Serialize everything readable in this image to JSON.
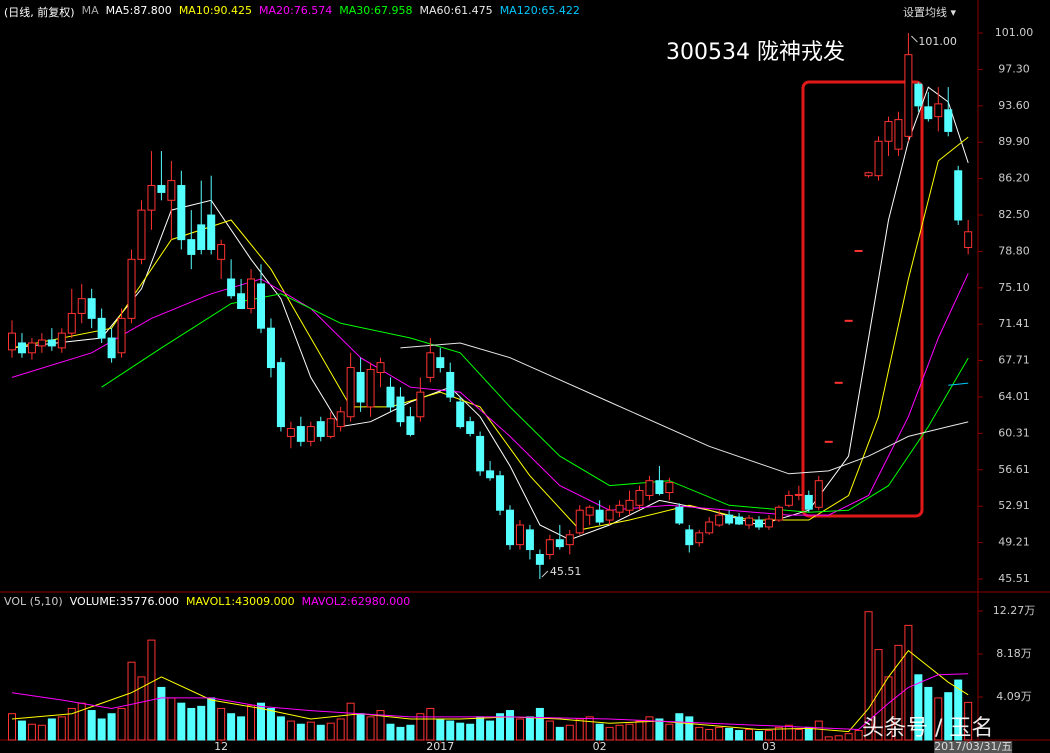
{
  "ui": {
    "period": "(日线, 前复权)",
    "button": "设置均线",
    "watermark": "头条号 / 玉名"
  },
  "chart_data": [
    {
      "type": "candlestick",
      "title": "300534  陇神戎发",
      "legend_title": "MA",
      "up_color": "#ff3232",
      "down_color": "#54ffff",
      "max_label": "101.00",
      "min_label": "45.51",
      "ylim": [
        44.39,
        103.85
      ],
      "yticks": [
        {
          "value": 101,
          "label": "101.00"
        },
        {
          "value": 97.3,
          "label": "97.30"
        },
        {
          "value": 93.6,
          "label": "93.60"
        },
        {
          "value": 89.9,
          "label": "89.90"
        },
        {
          "value": 86.2,
          "label": "86.20"
        },
        {
          "value": 82.5,
          "label": "82.50"
        },
        {
          "value": 78.8,
          "label": "78.80"
        },
        {
          "value": 75.1,
          "label": "75.10"
        },
        71.41,
        67.71,
        64.01,
        60.31,
        56.61,
        52.91,
        49.21,
        45.51
      ],
      "categories": [
        null,
        null,
        null,
        null,
        null,
        null,
        null,
        null,
        null,
        null,
        null,
        null,
        null,
        null,
        null,
        null,
        null,
        null,
        null,
        null,
        null,
        "12",
        null,
        null,
        null,
        null,
        null,
        null,
        null,
        null,
        null,
        null,
        null,
        null,
        null,
        null,
        null,
        null,
        null,
        null,
        null,
        null,
        null,
        "2017",
        null,
        null,
        null,
        null,
        null,
        null,
        null,
        null,
        null,
        null,
        null,
        null,
        null,
        null,
        null,
        "02",
        null,
        null,
        null,
        null,
        null,
        null,
        null,
        null,
        null,
        null,
        null,
        null,
        null,
        null,
        null,
        null,
        "03",
        null,
        null,
        null,
        null,
        null,
        null,
        null,
        null,
        null,
        null,
        null,
        null,
        null,
        null,
        null,
        null,
        null,
        null,
        null,
        "2017/03/31/五"
      ],
      "ohlc": [
        [
          68.8,
          71.8,
          68,
          70.5
        ],
        [
          69.5,
          70.5,
          68,
          68.5
        ],
        [
          68.5,
          70,
          67.8,
          69.5
        ],
        [
          69.2,
          70.5,
          68.5,
          69.8
        ],
        [
          69.8,
          71,
          68.7,
          69.2
        ],
        [
          69,
          71,
          68.5,
          70.5
        ],
        [
          70.5,
          75,
          70,
          72.5
        ],
        [
          72.5,
          75.5,
          71.5,
          74
        ],
        [
          74,
          75,
          71,
          72
        ],
        [
          72,
          73,
          69.5,
          70
        ],
        [
          70,
          71,
          67.5,
          68
        ],
        [
          68.5,
          73,
          68,
          72
        ],
        [
          72,
          79,
          71.5,
          78
        ],
        [
          78,
          84,
          77.5,
          83
        ],
        [
          83,
          89,
          81,
          85.5
        ],
        [
          85.5,
          89,
          84,
          84.8
        ],
        [
          84,
          88,
          80,
          86
        ],
        [
          85.5,
          87,
          79,
          80
        ],
        [
          80,
          83,
          77,
          78.5
        ],
        [
          81.5,
          86,
          78.5,
          79
        ],
        [
          82.5,
          86.5,
          78.5,
          79
        ],
        [
          78,
          80,
          76,
          79.5
        ],
        [
          76,
          78,
          74,
          74.3
        ],
        [
          74.5,
          76,
          73,
          73
        ],
        [
          73,
          77,
          72.5,
          76
        ],
        [
          75.5,
          77.5,
          70.5,
          71
        ],
        [
          71,
          72,
          66,
          67
        ],
        [
          67.5,
          68,
          60.5,
          61
        ],
        [
          60,
          61.5,
          58.8,
          60.8
        ],
        [
          61,
          62,
          59,
          59.5
        ],
        [
          59.5,
          61.5,
          59,
          61
        ],
        [
          61.5,
          62,
          59.5,
          60
        ],
        [
          60,
          62.5,
          59.8,
          61.8
        ],
        [
          61,
          63,
          60.5,
          62.5
        ],
        [
          62,
          68.5,
          61.5,
          67
        ],
        [
          66.5,
          68,
          62.5,
          63.5
        ],
        [
          63,
          67.5,
          62,
          66.8
        ],
        [
          66.5,
          68,
          65,
          67.5
        ],
        [
          65,
          66,
          62.5,
          63
        ],
        [
          64,
          65,
          61,
          61.5
        ],
        [
          62,
          63,
          60,
          60.2
        ],
        [
          62,
          66,
          61.5,
          64.5
        ],
        [
          66,
          70,
          65.5,
          68.5
        ],
        [
          68,
          69,
          66.5,
          67
        ],
        [
          66.5,
          67.5,
          63.5,
          64
        ],
        [
          63.5,
          64,
          60.8,
          61
        ],
        [
          61.5,
          62,
          60,
          60.3
        ],
        [
          60,
          60.5,
          56,
          56.5
        ],
        [
          56.5,
          57.5,
          55.5,
          55.8
        ],
        [
          56,
          56.5,
          52,
          52.5
        ],
        [
          52.5,
          53,
          48.5,
          49
        ],
        [
          49,
          51.5,
          48.5,
          51
        ],
        [
          50.5,
          51,
          47.5,
          48.5
        ],
        [
          48,
          48.5,
          45.51,
          47
        ],
        [
          48,
          50,
          47.5,
          49.5
        ],
        [
          49.5,
          51,
          48.5,
          48.8
        ],
        [
          49,
          50.5,
          48,
          50
        ],
        [
          50.2,
          53,
          50,
          52.5
        ],
        [
          52,
          53,
          51,
          52.8
        ],
        [
          52.5,
          53.5,
          51,
          51.3
        ],
        [
          51.5,
          53,
          51,
          52.5
        ],
        [
          52.3,
          53.5,
          51.8,
          53
        ],
        [
          52.5,
          54.5,
          52,
          53.5
        ],
        [
          53,
          55,
          52.5,
          54.5
        ],
        [
          54,
          56,
          53.5,
          55.5
        ],
        [
          55.5,
          57,
          54,
          54.2
        ],
        [
          54.3,
          55.8,
          53.5,
          55.3
        ],
        [
          52.8,
          53.2,
          51,
          51.2
        ],
        [
          50.5,
          51,
          48.2,
          49
        ],
        [
          49.2,
          50.5,
          48.8,
          50.2
        ],
        [
          50.2,
          51.8,
          50,
          51.3
        ],
        [
          51,
          52.5,
          50.8,
          52
        ],
        [
          52,
          52.5,
          51,
          51.2
        ],
        [
          51.8,
          52.2,
          51,
          51.1
        ],
        [
          51,
          52,
          50.6,
          51.7
        ],
        [
          51.5,
          51.9,
          50.5,
          50.8
        ],
        [
          50.8,
          52,
          50.5,
          51.6
        ],
        [
          51.5,
          53,
          51.3,
          52.8
        ],
        [
          53,
          54.5,
          52.8,
          54
        ],
        [
          54,
          55,
          53.5,
          54.1
        ],
        [
          54,
          54.5,
          52.3,
          52.6
        ],
        [
          52.8,
          56,
          52.5,
          55.5
        ],
        [
          59.5,
          59.5,
          59.5,
          59.5
        ],
        [
          65.5,
          65.5,
          65.5,
          65.5
        ],
        [
          71.8,
          71.8,
          71.8,
          71.8
        ],
        [
          78.9,
          78.9,
          78.9,
          78.9
        ],
        [
          86.5,
          86.9,
          86.3,
          86.8
        ],
        [
          86.5,
          90.5,
          86,
          90
        ],
        [
          90,
          92.5,
          88.5,
          92
        ],
        [
          89.2,
          93,
          88.5,
          92.2
        ],
        [
          90.5,
          101,
          90,
          98.8
        ],
        [
          95.8,
          96,
          93,
          93.6
        ],
        [
          93.5,
          95,
          92,
          92.3
        ],
        [
          92.5,
          95.5,
          91,
          93.8
        ],
        [
          93.2,
          95.5,
          90.5,
          91
        ],
        [
          87,
          87.5,
          81.5,
          82
        ],
        [
          79.2,
          82,
          78.5,
          80.8
        ]
      ],
      "series": [
        {
          "name": "MA5:87.800",
          "color": "#ffffff",
          "x": [
            0,
            9,
            13,
            16,
            20,
            24,
            27,
            30,
            33,
            36,
            40,
            44,
            47,
            50,
            53,
            56,
            60,
            65,
            70,
            75,
            80,
            84,
            86,
            88,
            90,
            92,
            94,
            96
          ],
          "values": [
            69,
            70,
            75,
            83,
            84,
            78,
            74,
            66,
            61,
            61.5,
            63.5,
            65,
            62,
            57,
            51,
            49.5,
            51,
            53.5,
            52.5,
            51,
            52.5,
            58,
            70,
            82,
            90,
            95.5,
            94,
            87.8
          ]
        },
        {
          "name": "MA10:90.425",
          "color": "#ffff00",
          "x": [
            0,
            10,
            16,
            22,
            26,
            30,
            34,
            38,
            43,
            47,
            52,
            57,
            62,
            68,
            74,
            80,
            84,
            87,
            90,
            93,
            96
          ],
          "values": [
            69,
            71,
            80,
            82,
            77,
            70,
            63,
            63,
            64.5,
            63,
            56,
            50.5,
            51.5,
            53,
            51.5,
            51.5,
            54,
            62,
            76,
            88,
            90.425
          ]
        },
        {
          "name": "MA20:76.574",
          "color": "#ff00ff",
          "x": [
            0,
            8,
            14,
            20,
            25,
            30,
            35,
            40,
            45,
            50,
            55,
            60,
            66,
            72,
            78,
            82,
            86,
            90,
            93,
            96
          ],
          "values": [
            66,
            68.5,
            72,
            74.5,
            76,
            73,
            68,
            65,
            64.5,
            60,
            55,
            52.5,
            53,
            52.5,
            52,
            52,
            54,
            62,
            70,
            76.574
          ]
        },
        {
          "name": "MA30:67.958",
          "color": "#00ff00",
          "x": [
            9,
            15,
            22,
            27,
            33,
            40,
            45,
            50,
            55,
            60,
            66,
            72,
            80,
            84,
            88,
            92,
            96
          ],
          "values": [
            65,
            69,
            73.5,
            74.5,
            71.5,
            70,
            68.5,
            63,
            58,
            55,
            55.5,
            53,
            52.3,
            52.5,
            55,
            61,
            67.958
          ]
        },
        {
          "name": "MA60:61.475",
          "color": "#e8e8e8",
          "x": [
            39,
            45,
            50,
            60,
            70,
            78,
            82,
            86,
            90,
            94,
            96
          ],
          "values": [
            69,
            69.5,
            68,
            63.5,
            59,
            56.2,
            56.5,
            58,
            60,
            61,
            61.475
          ]
        },
        {
          "name": "MA120:65.422",
          "color": "#00c8ff",
          "x": [
            94,
            96
          ],
          "values": [
            65.2,
            65.422
          ]
        }
      ]
    },
    {
      "type": "bar",
      "title": "VOL (5,10)",
      "name": "VOLUME:35776.000",
      "ylim": [
        0,
        139800
      ],
      "yticks": [
        {
          "value": 122700,
          "label": "12.27万"
        },
        {
          "value": 81800,
          "label": "8.18万"
        },
        {
          "value": 40900,
          "label": "4.09万"
        }
      ],
      "values": [
        25000,
        18000,
        15000,
        14000,
        20000,
        22000,
        30000,
        35000,
        28000,
        20000,
        25000,
        30000,
        74000,
        60000,
        95000,
        50000,
        40000,
        35000,
        30000,
        32000,
        40000,
        30000,
        25000,
        22000,
        33000,
        35000,
        30000,
        22000,
        18000,
        15000,
        17000,
        14000,
        16000,
        20000,
        35000,
        25000,
        22000,
        28000,
        15000,
        12000,
        14000,
        25000,
        30000,
        20000,
        18000,
        16000,
        15000,
        22000,
        18000,
        25000,
        28000,
        20000,
        22000,
        30000,
        18000,
        12000,
        14000,
        20000,
        22000,
        15000,
        12000,
        14000,
        15000,
        18000,
        22000,
        20000,
        15000,
        25000,
        22000,
        12000,
        10000,
        12000,
        11000,
        9000,
        10000,
        8000,
        9000,
        12000,
        14000,
        10000,
        12000,
        18000,
        3000,
        4000,
        6000,
        9000,
        122000,
        86000,
        60000,
        90000,
        109000,
        62000,
        50000,
        40000,
        45000,
        57000,
        35776
      ],
      "series": [
        {
          "name": "MAVOL1:43009.000",
          "color": "#ffff00",
          "x": [
            0,
            6,
            12,
            15,
            20,
            25,
            30,
            35,
            40,
            45,
            50,
            55,
            60,
            65,
            70,
            75,
            80,
            84,
            86,
            88,
            90,
            92,
            94,
            96
          ],
          "values": [
            20000,
            25000,
            45000,
            60000,
            38000,
            30000,
            20000,
            25000,
            20000,
            20000,
            22000,
            20000,
            16000,
            18000,
            14000,
            10000,
            11000,
            8000,
            30000,
            60000,
            85000,
            70000,
            55000,
            43009
          ]
        },
        {
          "name": "MAVOL2:62980.000",
          "color": "#ff00ff",
          "x": [
            0,
            5,
            10,
            15,
            20,
            25,
            30,
            40,
            50,
            60,
            70,
            80,
            85,
            88,
            90,
            93,
            96
          ],
          "values": [
            45000,
            38000,
            30000,
            40000,
            40000,
            32000,
            28000,
            22000,
            22000,
            20000,
            16000,
            12000,
            10000,
            35000,
            50000,
            62000,
            62980
          ]
        }
      ]
    }
  ]
}
